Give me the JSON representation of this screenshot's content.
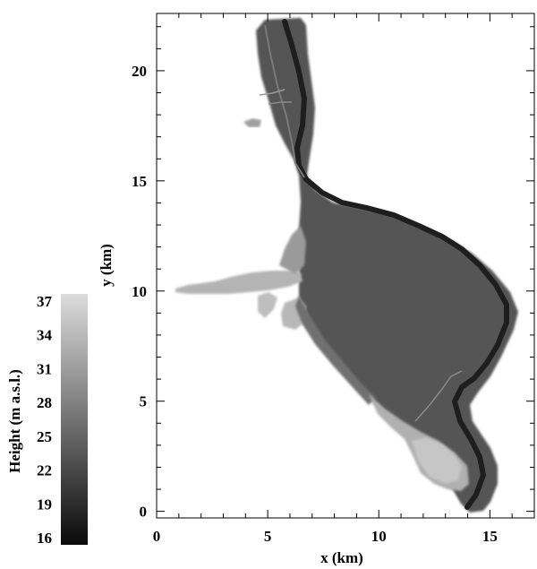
{
  "map": {
    "x_axis": {
      "label": "x  (km)",
      "ticks": [
        {
          "value": 0,
          "label": "0"
        },
        {
          "value": 5,
          "label": "5"
        },
        {
          "value": 10,
          "label": "10"
        },
        {
          "value": 15,
          "label": "15"
        }
      ],
      "range": [
        0,
        17
      ]
    },
    "y_axis": {
      "label": "y  (km)",
      "ticks": [
        {
          "value": 0,
          "label": "0"
        },
        {
          "value": 5,
          "label": "5"
        },
        {
          "value": 10,
          "label": "10"
        },
        {
          "value": 15,
          "label": "15"
        },
        {
          "value": 20,
          "label": "20"
        }
      ],
      "range": [
        -0.3,
        22.6
      ]
    },
    "colorbar": {
      "label": "Height  (m a.s.l.)",
      "min": 16,
      "max": 37,
      "ticks": [
        "37",
        "34",
        "31",
        "28",
        "25",
        "22",
        "19",
        "16"
      ],
      "colors": [
        "#0a0a0a",
        "#dcdcdc"
      ]
    },
    "grid": false
  }
}
